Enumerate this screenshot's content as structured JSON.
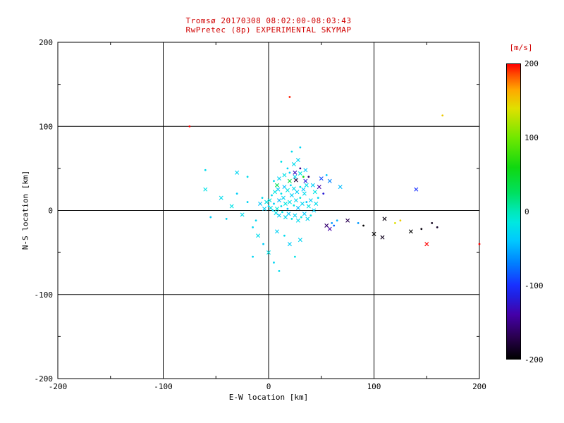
{
  "page": {
    "background": "#ffffff",
    "frame_color": "#000000",
    "annotation_color": "#d00000"
  },
  "chart_data": {
    "type": "scatter",
    "title": "Tromsø 20170308 08:02:00-08:03:43",
    "subtitle": "RwPretec (8p) EXPERIMENTAL SKYMAP",
    "title_color": "#d00000",
    "xlabel": "E-W location [km]",
    "ylabel": "N-S location [km]",
    "xlim": [
      -200,
      200
    ],
    "ylim": [
      -200,
      200
    ],
    "xticks": [
      "-200",
      "-100",
      "0",
      "100",
      "200"
    ],
    "xtick_values": [
      -200,
      -100,
      0,
      100,
      200
    ],
    "yticks": [
      "-200",
      "-100",
      "0",
      "100",
      "200"
    ],
    "ytick_values": [
      -200,
      -100,
      0,
      100,
      200
    ],
    "gridlines": [
      -100,
      0,
      100
    ],
    "minor_ticks": [
      -150,
      -50,
      50,
      150
    ],
    "grid": true,
    "colorbar": {
      "label": "[m/s]",
      "label_color": "#d00000",
      "range": [
        -200,
        200
      ],
      "ticks": [
        "200",
        "100",
        "0",
        "-100",
        "-200"
      ],
      "tick_values": [
        200,
        100,
        0,
        -100,
        -200
      ],
      "colormap": [
        [
          -200,
          "#000000"
        ],
        [
          -170,
          "#2a0050"
        ],
        [
          -140,
          "#4400a8"
        ],
        [
          -115,
          "#2020e0"
        ],
        [
          -100,
          "#1830ff"
        ],
        [
          -70,
          "#0080ff"
        ],
        [
          -40,
          "#00c8ff"
        ],
        [
          -15,
          "#00e8e0"
        ],
        [
          0,
          "#00e8b8"
        ],
        [
          25,
          "#00e060"
        ],
        [
          60,
          "#10d810"
        ],
        [
          100,
          "#70e800"
        ],
        [
          140,
          "#e0e000"
        ],
        [
          165,
          "#ffa800"
        ],
        [
          185,
          "#ff5000"
        ],
        [
          200,
          "#ff0000"
        ]
      ]
    },
    "point_format": [
      "ew_km",
      "ns_km",
      "velocity_ms",
      "marker(x=cross,d=dot)"
    ],
    "points": [
      [
        2,
        3,
        -20,
        "x"
      ],
      [
        5,
        8,
        -35,
        "d"
      ],
      [
        8,
        2,
        -12,
        "x"
      ],
      [
        10,
        12,
        -45,
        "x"
      ],
      [
        12,
        5,
        -25,
        "d"
      ],
      [
        14,
        15,
        -30,
        "x"
      ],
      [
        16,
        8,
        -15,
        "x"
      ],
      [
        18,
        2,
        -40,
        "d"
      ],
      [
        20,
        10,
        -22,
        "x"
      ],
      [
        22,
        18,
        -35,
        "x"
      ],
      [
        24,
        6,
        -18,
        "d"
      ],
      [
        26,
        12,
        -28,
        "x"
      ],
      [
        28,
        3,
        -45,
        "x"
      ],
      [
        30,
        15,
        -12,
        "d"
      ],
      [
        32,
        8,
        -30,
        "x"
      ],
      [
        34,
        20,
        -25,
        "x"
      ],
      [
        36,
        10,
        -40,
        "d"
      ],
      [
        38,
        5,
        -20,
        "x"
      ],
      [
        40,
        12,
        -35,
        "x"
      ],
      [
        3,
        18,
        -28,
        "d"
      ],
      [
        6,
        22,
        -15,
        "x"
      ],
      [
        9,
        25,
        -38,
        "x"
      ],
      [
        12,
        20,
        -20,
        "d"
      ],
      [
        15,
        28,
        -42,
        "x"
      ],
      [
        18,
        24,
        -18,
        "x"
      ],
      [
        21,
        30,
        -30,
        "d"
      ],
      [
        24,
        26,
        -25,
        "x"
      ],
      [
        27,
        22,
        -35,
        "x"
      ],
      [
        30,
        28,
        -15,
        "d"
      ],
      [
        33,
        25,
        -40,
        "x"
      ],
      [
        36,
        30,
        -22,
        "x"
      ],
      [
        0,
        5,
        -30,
        "d"
      ],
      [
        -2,
        10,
        -20,
        "x"
      ],
      [
        -4,
        2,
        -35,
        "x"
      ],
      [
        -6,
        15,
        -25,
        "d"
      ],
      [
        -8,
        8,
        -40,
        "x"
      ],
      [
        1,
        12,
        -15,
        "x"
      ],
      [
        4,
        0,
        -30,
        "d"
      ],
      [
        7,
        -3,
        -22,
        "x"
      ],
      [
        10,
        -6,
        -35,
        "x"
      ],
      [
        13,
        -2,
        -18,
        "d"
      ],
      [
        16,
        -8,
        -28,
        "x"
      ],
      [
        19,
        -4,
        -40,
        "x"
      ],
      [
        22,
        -10,
        -20,
        "d"
      ],
      [
        25,
        -6,
        -32,
        "x"
      ],
      [
        28,
        -12,
        -25,
        "x"
      ],
      [
        31,
        -8,
        -15,
        "d"
      ],
      [
        34,
        -4,
        -38,
        "x"
      ],
      [
        37,
        -10,
        -28,
        "x"
      ],
      [
        40,
        -6,
        -20,
        "d"
      ],
      [
        43,
        0,
        -33,
        "x"
      ],
      [
        45,
        8,
        -24,
        "x"
      ],
      [
        47,
        15,
        -30,
        "d"
      ],
      [
        44,
        22,
        -18,
        "x"
      ],
      [
        42,
        30,
        -35,
        "x"
      ],
      [
        5,
        35,
        -25,
        "d"
      ],
      [
        10,
        38,
        -30,
        "x"
      ],
      [
        15,
        42,
        -20,
        "x"
      ],
      [
        20,
        45,
        -35,
        "d"
      ],
      [
        25,
        40,
        -28,
        "x"
      ],
      [
        30,
        44,
        -15,
        "x"
      ],
      [
        18,
        50,
        -30,
        "d"
      ],
      [
        24,
        55,
        -25,
        "x"
      ],
      [
        35,
        48,
        -38,
        "x"
      ],
      [
        12,
        58,
        -20,
        "d"
      ],
      [
        28,
        60,
        -30,
        "x"
      ],
      [
        20,
        35,
        40,
        "x"
      ],
      [
        33,
        40,
        55,
        "d"
      ],
      [
        8,
        30,
        30,
        "x"
      ],
      [
        22,
        70,
        -25,
        "d"
      ],
      [
        30,
        75,
        -30,
        "d"
      ],
      [
        25,
        45,
        -130,
        "x"
      ],
      [
        30,
        50,
        -150,
        "d"
      ],
      [
        35,
        35,
        -120,
        "x"
      ],
      [
        48,
        28,
        -140,
        "x"
      ],
      [
        52,
        20,
        -120,
        "d"
      ],
      [
        55,
        -18,
        -160,
        "x"
      ],
      [
        58,
        -22,
        -140,
        "x"
      ],
      [
        26,
        36,
        -180,
        "x"
      ],
      [
        38,
        40,
        -160,
        "d"
      ],
      [
        -20,
        10,
        -30,
        "d"
      ],
      [
        -25,
        -5,
        -25,
        "x"
      ],
      [
        -30,
        20,
        -35,
        "d"
      ],
      [
        -35,
        5,
        -20,
        "x"
      ],
      [
        -40,
        -10,
        -30,
        "d"
      ],
      [
        -45,
        15,
        -25,
        "x"
      ],
      [
        -55,
        -8,
        -35,
        "d"
      ],
      [
        -60,
        25,
        -20,
        "x"
      ],
      [
        -15,
        -20,
        -30,
        "d"
      ],
      [
        -10,
        -30,
        -25,
        "x"
      ],
      [
        -5,
        -40,
        -35,
        "d"
      ],
      [
        0,
        -50,
        -20,
        "x"
      ],
      [
        5,
        -62,
        -30,
        "d"
      ],
      [
        10,
        -72,
        -25,
        "d"
      ],
      [
        -15,
        -55,
        -30,
        "d"
      ],
      [
        20,
        -40,
        -35,
        "x"
      ],
      [
        25,
        -55,
        -20,
        "d"
      ],
      [
        30,
        -35,
        -30,
        "x"
      ],
      [
        -20,
        40,
        -25,
        "d"
      ],
      [
        -30,
        45,
        -30,
        "x"
      ],
      [
        -60,
        48,
        -25,
        "d"
      ],
      [
        -12,
        -12,
        -28,
        "d"
      ],
      [
        8,
        -25,
        -33,
        "x"
      ],
      [
        15,
        -30,
        -26,
        "d"
      ],
      [
        60,
        -15,
        -60,
        "d"
      ],
      [
        62,
        -18,
        -80,
        "d"
      ],
      [
        65,
        -12,
        -50,
        "d"
      ],
      [
        68,
        28,
        -45,
        "x"
      ],
      [
        58,
        35,
        -70,
        "x"
      ],
      [
        55,
        42,
        -40,
        "d"
      ],
      [
        50,
        38,
        -90,
        "x"
      ],
      [
        75,
        -12,
        -170,
        "x"
      ],
      [
        85,
        -15,
        -60,
        "d"
      ],
      [
        90,
        -18,
        -200,
        "d"
      ],
      [
        100,
        -28,
        -200,
        "x"
      ],
      [
        110,
        -10,
        -195,
        "x"
      ],
      [
        108,
        -32,
        -190,
        "x"
      ],
      [
        120,
        -15,
        140,
        "d"
      ],
      [
        125,
        -12,
        150,
        "d"
      ],
      [
        135,
        -25,
        -200,
        "x"
      ],
      [
        140,
        25,
        -100,
        "x"
      ],
      [
        145,
        -22,
        -195,
        "d"
      ],
      [
        150,
        -40,
        200,
        "x"
      ],
      [
        155,
        -15,
        -190,
        "d"
      ],
      [
        160,
        -20,
        -185,
        "d"
      ],
      [
        -75,
        100,
        200,
        "d"
      ],
      [
        20,
        135,
        195,
        "d"
      ],
      [
        165,
        113,
        150,
        "d"
      ],
      [
        200,
        -40,
        200,
        "d"
      ]
    ]
  }
}
